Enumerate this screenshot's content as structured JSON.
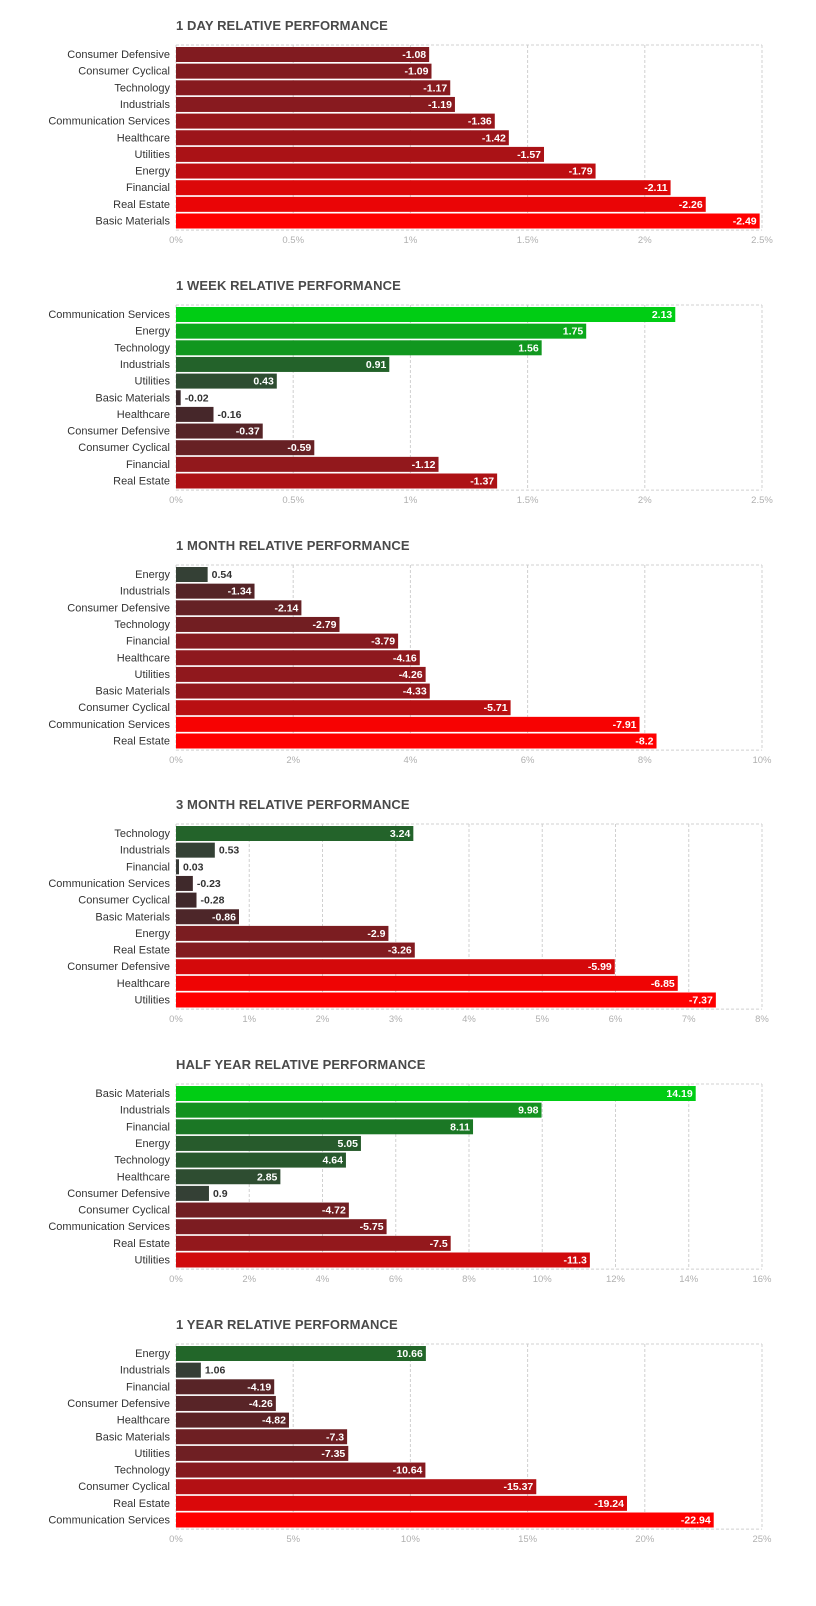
{
  "chart_data": [
    {
      "type": "bar",
      "title": "1 DAY RELATIVE PERFORMANCE",
      "categories": [
        "Consumer Defensive",
        "Consumer Cyclical",
        "Technology",
        "Industrials",
        "Communication Services",
        "Healthcare",
        "Utilities",
        "Energy",
        "Financial",
        "Real Estate",
        "Basic Materials"
      ],
      "values": [
        -1.08,
        -1.09,
        -1.17,
        -1.19,
        -1.36,
        -1.42,
        -1.57,
        -1.79,
        -2.11,
        -2.26,
        -2.49
      ],
      "value_labels": [
        "-1.08",
        "-1.09",
        "-1.17",
        "-1.19",
        "-1.36",
        "-1.42",
        "-1.57",
        "-1.79",
        "-2.11",
        "-2.26",
        "-2.49"
      ],
      "xlim": [
        0,
        2.5
      ],
      "ticks": [
        "0%",
        "0.5%",
        "1%",
        "1.5%",
        "2%",
        "2.5%"
      ],
      "grid": true
    },
    {
      "type": "bar",
      "title": "1 WEEK RELATIVE PERFORMANCE",
      "categories": [
        "Communication Services",
        "Energy",
        "Technology",
        "Industrials",
        "Utilities",
        "Basic Materials",
        "Healthcare",
        "Consumer Defensive",
        "Consumer Cyclical",
        "Financial",
        "Real Estate"
      ],
      "values": [
        2.13,
        1.75,
        1.56,
        0.91,
        0.43,
        -0.02,
        -0.16,
        -0.37,
        -0.59,
        -1.12,
        -1.37
      ],
      "value_labels": [
        "2.13",
        "1.75",
        "1.56",
        "0.91",
        "0.43",
        "-0.02",
        "-0.16",
        "-0.37",
        "-0.59",
        "-1.12",
        "-1.37"
      ],
      "xlim": [
        0,
        2.5
      ],
      "ticks": [
        "0%",
        "0.5%",
        "1%",
        "1.5%",
        "2%",
        "2.5%"
      ],
      "grid": true
    },
    {
      "type": "bar",
      "title": "1 MONTH RELATIVE PERFORMANCE",
      "categories": [
        "Energy",
        "Industrials",
        "Consumer Defensive",
        "Technology",
        "Financial",
        "Healthcare",
        "Utilities",
        "Basic Materials",
        "Consumer Cyclical",
        "Communication Services",
        "Real Estate"
      ],
      "values": [
        0.54,
        -1.34,
        -2.14,
        -2.79,
        -3.79,
        -4.16,
        -4.26,
        -4.33,
        -5.71,
        -7.91,
        -8.2
      ],
      "value_labels": [
        "0.54",
        "-1.34",
        "-2.14",
        "-2.79",
        "-3.79",
        "-4.16",
        "-4.26",
        "-4.33",
        "-5.71",
        "-7.91",
        "-8.2"
      ],
      "xlim": [
        0,
        10
      ],
      "ticks": [
        "0%",
        "2%",
        "4%",
        "6%",
        "8%",
        "10%"
      ],
      "grid": true
    },
    {
      "type": "bar",
      "title": "3 MONTH RELATIVE PERFORMANCE",
      "categories": [
        "Technology",
        "Industrials",
        "Financial",
        "Communication Services",
        "Consumer Cyclical",
        "Basic Materials",
        "Energy",
        "Real Estate",
        "Consumer Defensive",
        "Healthcare",
        "Utilities"
      ],
      "values": [
        3.24,
        0.53,
        0.03,
        -0.23,
        -0.28,
        -0.86,
        -2.9,
        -3.26,
        -5.99,
        -6.85,
        -7.37
      ],
      "value_labels": [
        "3.24",
        "0.53",
        "0.03",
        "-0.23",
        "-0.28",
        "-0.86",
        "-2.9",
        "-3.26",
        "-5.99",
        "-6.85",
        "-7.37"
      ],
      "xlim": [
        0,
        8
      ],
      "ticks": [
        "0%",
        "1%",
        "2%",
        "3%",
        "4%",
        "5%",
        "6%",
        "7%",
        "8%"
      ],
      "grid": true
    },
    {
      "type": "bar",
      "title": "HALF YEAR RELATIVE PERFORMANCE",
      "categories": [
        "Basic Materials",
        "Industrials",
        "Financial",
        "Energy",
        "Technology",
        "Healthcare",
        "Consumer Defensive",
        "Consumer Cyclical",
        "Communication Services",
        "Real Estate",
        "Utilities"
      ],
      "values": [
        14.19,
        9.98,
        8.11,
        5.05,
        4.64,
        2.85,
        0.9,
        -4.72,
        -5.75,
        -7.5,
        -11.3
      ],
      "value_labels": [
        "14.19",
        "9.98",
        "8.11",
        "5.05",
        "4.64",
        "2.85",
        "0.9",
        "-4.72",
        "-5.75",
        "-7.5",
        "-11.3"
      ],
      "xlim": [
        0,
        16
      ],
      "ticks": [
        "0%",
        "2%",
        "4%",
        "6%",
        "8%",
        "10%",
        "12%",
        "14%",
        "16%"
      ],
      "grid": true
    },
    {
      "type": "bar",
      "title": "1 YEAR RELATIVE PERFORMANCE",
      "categories": [
        "Energy",
        "Industrials",
        "Financial",
        "Consumer Defensive",
        "Healthcare",
        "Basic Materials",
        "Utilities",
        "Technology",
        "Consumer Cyclical",
        "Real Estate",
        "Communication Services"
      ],
      "values": [
        10.66,
        1.06,
        -4.19,
        -4.26,
        -4.82,
        -7.3,
        -7.35,
        -10.64,
        -15.37,
        -19.24,
        -22.94
      ],
      "value_labels": [
        "10.66",
        "1.06",
        "-4.19",
        "-4.26",
        "-4.82",
        "-7.3",
        "-7.35",
        "-10.64",
        "-15.37",
        "-19.24",
        "-22.94"
      ],
      "xlim": [
        0,
        25
      ],
      "ticks": [
        "0%",
        "5%",
        "10%",
        "15%",
        "20%",
        "25%"
      ],
      "grid": true
    }
  ]
}
